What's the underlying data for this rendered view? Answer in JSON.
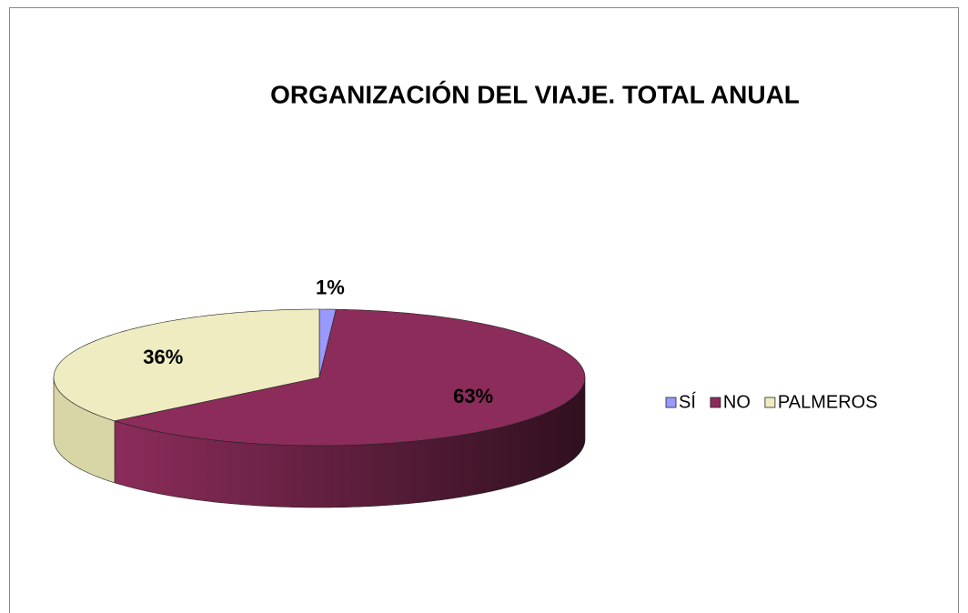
{
  "chart_data": {
    "type": "pie3d",
    "title": "ORGANIZACIÓN DEL VIAJE. TOTAL ANUAL",
    "categories": [
      "SÍ",
      "NO",
      "PALMEROS"
    ],
    "series": [
      {
        "name": "ORGANIZACIÓN DEL VIAJE",
        "values": [
          1,
          63,
          36
        ],
        "value_labels": [
          "1%",
          "63%",
          "36%"
        ],
        "colors": [
          "#9999ff",
          "#8b2c5a",
          "#eeecc0"
        ]
      }
    ],
    "legend": "right"
  }
}
